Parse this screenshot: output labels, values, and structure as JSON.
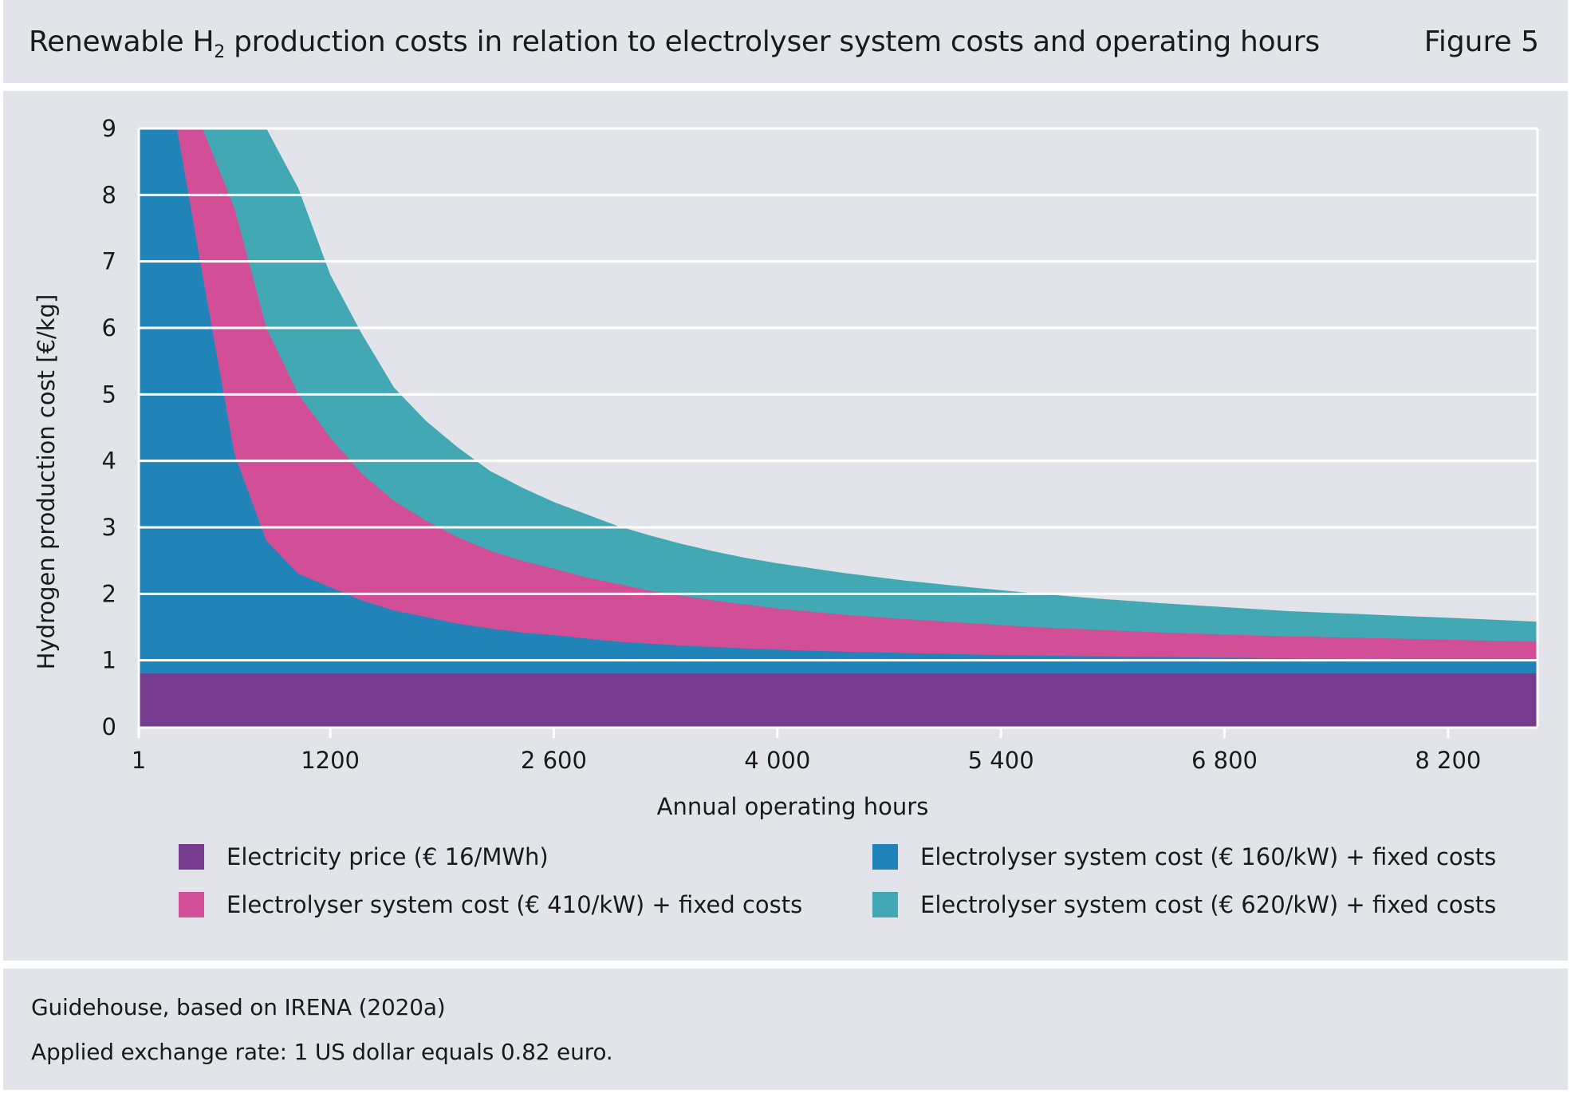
{
  "header": {
    "title_main": "Renewable H",
    "title_sub": "2",
    "title_rest": " production costs in relation to electrolyser system costs and operating hours",
    "figure_label": "Figure 5"
  },
  "footer": {
    "source": "Guidehouse, based on IRENA (2020a)",
    "note": "Applied exchange rate: 1 US dollar equals 0.82 euro."
  },
  "colors": {
    "electricity": "#763b8c",
    "sys160": "#2084b8",
    "sys410": "#d24f98",
    "sys620": "#41a8b4",
    "grid": "#ffffff",
    "panel": "#e3e4e9"
  },
  "chart_data": {
    "type": "area",
    "stacking": "cumulative (each series value is the total production cost at that system cost)",
    "xlabel": "Annual operating hours",
    "ylabel": "Hydrogen production cost [€/kg]",
    "xlim": [
      1,
      8760
    ],
    "ylim": [
      0,
      9
    ],
    "x_ticks": [
      1,
      1200,
      2600,
      4000,
      5400,
      6800,
      8200
    ],
    "x_tick_labels": [
      "1",
      "1200",
      "2 600",
      "4 000",
      "5 400",
      "6 800",
      "8 200"
    ],
    "y_ticks": [
      0,
      1,
      2,
      3,
      4,
      5,
      6,
      7,
      8,
      9
    ],
    "y_tick_labels": [
      "0",
      "1",
      "2",
      "3",
      "4",
      "5",
      "6",
      "7",
      "8",
      "9"
    ],
    "grid": true,
    "legend_position": "bottom",
    "x": [
      1,
      240,
      400,
      600,
      800,
      1000,
      1200,
      1400,
      1600,
      1800,
      2000,
      2200,
      2400,
      2600,
      2800,
      3000,
      3200,
      3400,
      3600,
      3800,
      4000,
      4400,
      4800,
      5200,
      5600,
      6000,
      6400,
      6800,
      7200,
      7600,
      8000,
      8400,
      8760
    ],
    "series": [
      {
        "name": "Electricity price (€ 16/MWh)",
        "color_key": "electricity",
        "values": [
          0.8,
          0.8,
          0.8,
          0.8,
          0.8,
          0.8,
          0.8,
          0.8,
          0.8,
          0.8,
          0.8,
          0.8,
          0.8,
          0.8,
          0.8,
          0.8,
          0.8,
          0.8,
          0.8,
          0.8,
          0.8,
          0.8,
          0.8,
          0.8,
          0.8,
          0.8,
          0.8,
          0.8,
          0.8,
          0.8,
          0.8,
          0.8,
          0.8
        ]
      },
      {
        "name": "Electrolyser system cost (€ 160/kW) + fixed costs",
        "color_key": "sys160",
        "values": [
          9,
          9,
          6.8,
          4.1,
          2.8,
          2.3,
          2.1,
          1.9,
          1.75,
          1.65,
          1.55,
          1.48,
          1.42,
          1.38,
          1.33,
          1.28,
          1.25,
          1.22,
          1.2,
          1.18,
          1.16,
          1.13,
          1.11,
          1.09,
          1.07,
          1.06,
          1.05,
          1.04,
          1.03,
          1.02,
          1.01,
          1.0,
          1.0
        ]
      },
      {
        "name": "Electrolyser system cost (€ 410/kW) + fixed costs",
        "color_key": "sys410",
        "values": [
          9,
          9,
          9,
          7.8,
          6.0,
          5.0,
          4.35,
          3.8,
          3.4,
          3.1,
          2.85,
          2.65,
          2.5,
          2.38,
          2.25,
          2.15,
          2.05,
          1.97,
          1.9,
          1.84,
          1.78,
          1.69,
          1.62,
          1.56,
          1.5,
          1.46,
          1.42,
          1.39,
          1.36,
          1.34,
          1.32,
          1.3,
          1.28
        ]
      },
      {
        "name": "Electrolyser system cost (€ 620/kW) + fixed costs",
        "color_key": "sys620",
        "values": [
          9,
          9,
          9,
          9,
          9,
          8.1,
          6.8,
          5.9,
          5.1,
          4.6,
          4.2,
          3.85,
          3.6,
          3.38,
          3.2,
          3.02,
          2.88,
          2.75,
          2.64,
          2.54,
          2.46,
          2.32,
          2.2,
          2.1,
          2.01,
          1.93,
          1.86,
          1.8,
          1.74,
          1.7,
          1.66,
          1.62,
          1.58
        ]
      }
    ],
    "legend_order": [
      0,
      1,
      2,
      3
    ]
  }
}
